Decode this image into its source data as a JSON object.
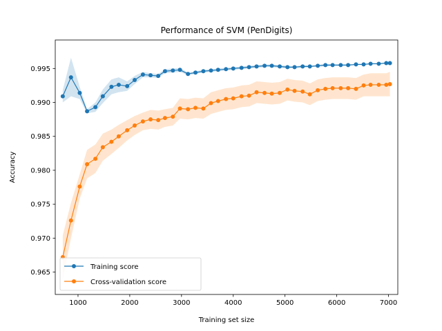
{
  "chart_data": {
    "type": "line",
    "title": "Performance of SVM (PenDigits)",
    "xlabel": "Training set size",
    "ylabel": "Accuracy",
    "xlim": [
      560,
      7180
    ],
    "ylim": [
      0.9617,
      0.9992
    ],
    "xticks": [
      1000,
      2000,
      3000,
      4000,
      5000,
      6000,
      7000
    ],
    "yticks": [
      0.965,
      0.97,
      0.975,
      0.98,
      0.985,
      0.99,
      0.995
    ],
    "ytick_labels": [
      "0.965",
      "0.970",
      "0.975",
      "0.980",
      "0.985",
      "0.990",
      "0.995"
    ],
    "legend_position": "lower left",
    "grid": false,
    "x": [
      705,
      864,
      1033,
      1175,
      1336,
      1479,
      1646,
      1787,
      1950,
      2095,
      2254,
      2402,
      2550,
      2681,
      2833,
      2970,
      3125,
      3270,
      3422,
      3570,
      3707,
      3859,
      4000,
      4160,
      4305,
      4451,
      4605,
      4745,
      4898,
      5048,
      5185,
      5341,
      5480,
      5633,
      5781,
      5920,
      6077,
      6220,
      6372,
      6520,
      6654,
      6812,
      6957,
      7028
    ],
    "series": [
      {
        "name": "Training score",
        "color": "#1f77b4",
        "mean": [
          0.9909,
          0.9937,
          0.9914,
          0.9887,
          0.9893,
          0.9909,
          0.9923,
          0.9926,
          0.9924,
          0.9933,
          0.9941,
          0.994,
          0.9939,
          0.9946,
          0.9947,
          0.9948,
          0.9942,
          0.9944,
          0.9946,
          0.9947,
          0.9948,
          0.9949,
          0.995,
          0.9951,
          0.9952,
          0.9953,
          0.9954,
          0.9954,
          0.9953,
          0.9952,
          0.9952,
          0.9953,
          0.9953,
          0.9954,
          0.9955,
          0.9955,
          0.9955,
          0.9955,
          0.9956,
          0.9956,
          0.9957,
          0.9957,
          0.9958,
          0.9958
        ],
        "lower": [
          0.99,
          0.9909,
          0.9905,
          0.9884,
          0.9886,
          0.9899,
          0.9912,
          0.9915,
          0.9917,
          0.9927,
          0.9937,
          0.9937,
          0.9936,
          0.9943,
          0.9944,
          0.9945,
          0.994,
          0.9942,
          0.9944,
          0.9945,
          0.9946,
          0.9947,
          0.9948,
          0.9949,
          0.995,
          0.9951,
          0.9952,
          0.9952,
          0.9951,
          0.995,
          0.9951,
          0.9951,
          0.9952,
          0.9953,
          0.9953,
          0.9954,
          0.9954,
          0.9954,
          0.9955,
          0.9955,
          0.9956,
          0.9956,
          0.9957,
          0.9957
        ],
        "upper": [
          0.9918,
          0.9966,
          0.9923,
          0.989,
          0.99,
          0.9919,
          0.9934,
          0.9937,
          0.9931,
          0.9939,
          0.9945,
          0.9943,
          0.9942,
          0.9949,
          0.995,
          0.9951,
          0.9944,
          0.9946,
          0.9948,
          0.9949,
          0.995,
          0.9951,
          0.9952,
          0.9953,
          0.9954,
          0.9955,
          0.9956,
          0.9956,
          0.9955,
          0.9954,
          0.9953,
          0.9955,
          0.9954,
          0.9955,
          0.9957,
          0.9956,
          0.9956,
          0.9956,
          0.9957,
          0.9957,
          0.9958,
          0.9958,
          0.9959,
          0.9959
        ]
      },
      {
        "name": "Cross-validation score",
        "color": "#ff7f0e",
        "mean": [
          0.9672,
          0.9726,
          0.9776,
          0.9809,
          0.9817,
          0.9834,
          0.9842,
          0.985,
          0.9859,
          0.9866,
          0.9872,
          0.9875,
          0.9874,
          0.9877,
          0.9879,
          0.9891,
          0.989,
          0.9892,
          0.9891,
          0.9899,
          0.9902,
          0.9905,
          0.9906,
          0.9909,
          0.991,
          0.9915,
          0.9914,
          0.9913,
          0.9914,
          0.9919,
          0.9917,
          0.9916,
          0.9912,
          0.9918,
          0.992,
          0.9921,
          0.9921,
          0.9921,
          0.992,
          0.9925,
          0.9926,
          0.9926,
          0.9926,
          0.9927
        ],
        "lower": [
          0.964,
          0.97,
          0.9758,
          0.9788,
          0.9796,
          0.9814,
          0.9824,
          0.9833,
          0.9844,
          0.9852,
          0.9859,
          0.9861,
          0.986,
          0.9864,
          0.9866,
          0.9876,
          0.9875,
          0.9877,
          0.9876,
          0.9883,
          0.9886,
          0.9889,
          0.989,
          0.9893,
          0.9894,
          0.9899,
          0.9898,
          0.9897,
          0.9898,
          0.9903,
          0.9901,
          0.99,
          0.9896,
          0.9902,
          0.9904,
          0.9905,
          0.9905,
          0.9905,
          0.9904,
          0.9909,
          0.9909,
          0.9909,
          0.9909,
          0.9909
        ],
        "upper": [
          0.9704,
          0.9752,
          0.9794,
          0.983,
          0.9838,
          0.9854,
          0.986,
          0.9867,
          0.9874,
          0.988,
          0.9885,
          0.9889,
          0.9888,
          0.989,
          0.9892,
          0.9906,
          0.9905,
          0.9907,
          0.9906,
          0.9915,
          0.9918,
          0.9921,
          0.9922,
          0.9925,
          0.9926,
          0.9931,
          0.993,
          0.9929,
          0.993,
          0.9935,
          0.9933,
          0.9932,
          0.9928,
          0.9934,
          0.9936,
          0.9937,
          0.9937,
          0.9937,
          0.9936,
          0.9941,
          0.9943,
          0.9943,
          0.9943,
          0.9945
        ]
      }
    ]
  }
}
